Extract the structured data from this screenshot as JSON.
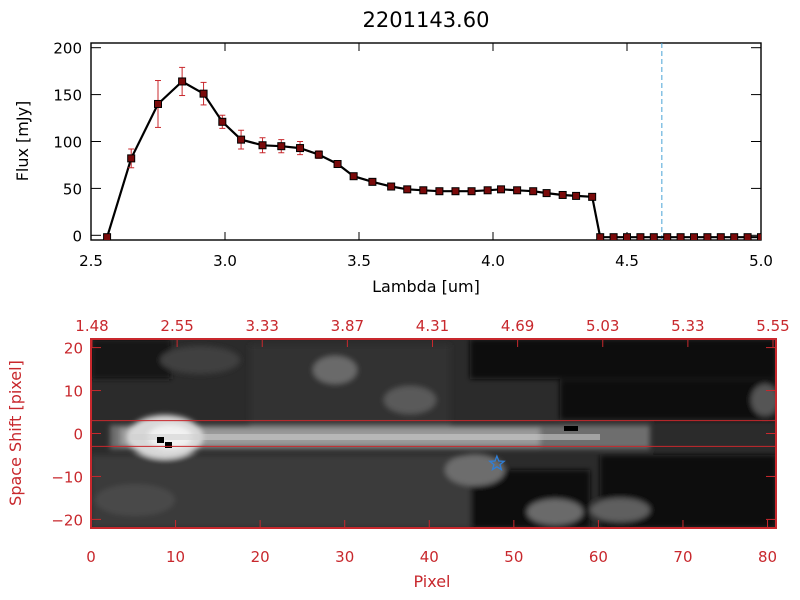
{
  "title": "2201143.60",
  "colors": {
    "background": "#ffffff",
    "axis": "#000000",
    "red_accent": "#c8282d",
    "error_bar": "#c8282d",
    "marker_fill": "#7a0a0a",
    "cutoff_line": "#4aa3d6",
    "star": "#2f7fd8"
  },
  "chart_data": [
    {
      "type": "line",
      "title": "2201143.60",
      "xlabel": "Lambda [um]",
      "ylabel": "Flux [mJy]",
      "xlim": [
        2.5,
        5.0
      ],
      "ylim": [
        -5,
        205
      ],
      "xticks": [
        2.5,
        3.0,
        3.5,
        4.0,
        4.5,
        5.0
      ],
      "xtick_labels": [
        "2.5",
        "3.0",
        "3.5",
        "4.0",
        "4.5",
        "5.0"
      ],
      "yticks": [
        0,
        50,
        100,
        150,
        200
      ],
      "ytick_labels": [
        "0",
        "50",
        "100",
        "150",
        "200"
      ],
      "vertical_line_x": 4.63,
      "series": [
        {
          "x": [
            2.56,
            2.65,
            2.75,
            2.84,
            2.92,
            2.99,
            3.06,
            3.14,
            3.21,
            3.28,
            3.35,
            3.42,
            3.48,
            3.55,
            3.62,
            3.68,
            3.74,
            3.8,
            3.86,
            3.92,
            3.98,
            4.03,
            4.09,
            4.15,
            4.2,
            4.26,
            4.31,
            4.37,
            4.4,
            4.45,
            4.5,
            4.55,
            4.6,
            4.65,
            4.7,
            4.75,
            4.8,
            4.85,
            4.9,
            4.95,
            5.0
          ],
          "y": [
            -2,
            82,
            140,
            164,
            151,
            121,
            102,
            96,
            95,
            93,
            86,
            76,
            63,
            57,
            52,
            49,
            48,
            47,
            47,
            47,
            48,
            49,
            48,
            47,
            45,
            43,
            42,
            41,
            -2,
            -2,
            -2,
            -2,
            -2,
            -2,
            -2,
            -2,
            -2,
            -2,
            -2,
            -2,
            -2
          ],
          "yerr": [
            0,
            10,
            25,
            15,
            12,
            7,
            10,
            8,
            7,
            7,
            4,
            3,
            2,
            1.5,
            1.5,
            1,
            1,
            1,
            1,
            1,
            1,
            1,
            1,
            1,
            1,
            1,
            1,
            1,
            0,
            0,
            0,
            0,
            0,
            0,
            0,
            0,
            0,
            0,
            0,
            0,
            0
          ]
        }
      ]
    },
    {
      "type": "heatmap",
      "xlabel": "Pixel",
      "ylabel": "Space Shift [pixel]",
      "xlim": [
        0,
        81
      ],
      "ylim": [
        -22,
        22
      ],
      "xticks": [
        0,
        10,
        20,
        30,
        40,
        50,
        60,
        70,
        80
      ],
      "xtick_labels": [
        "0",
        "10",
        "20",
        "30",
        "40",
        "50",
        "60",
        "70",
        "80"
      ],
      "yticks": [
        -20,
        -10,
        0,
        10,
        20
      ],
      "ytick_labels": [
        "−20",
        "−10",
        "0",
        "10",
        "20"
      ],
      "top_axis_labels": [
        "1.48",
        "2.55",
        "3.33",
        "3.87",
        "4.31",
        "4.69",
        "5.03",
        "5.33",
        "5.55"
      ],
      "extraction_band": [
        -3,
        3
      ],
      "star_marker": {
        "x": 48,
        "y": -7
      }
    }
  ]
}
